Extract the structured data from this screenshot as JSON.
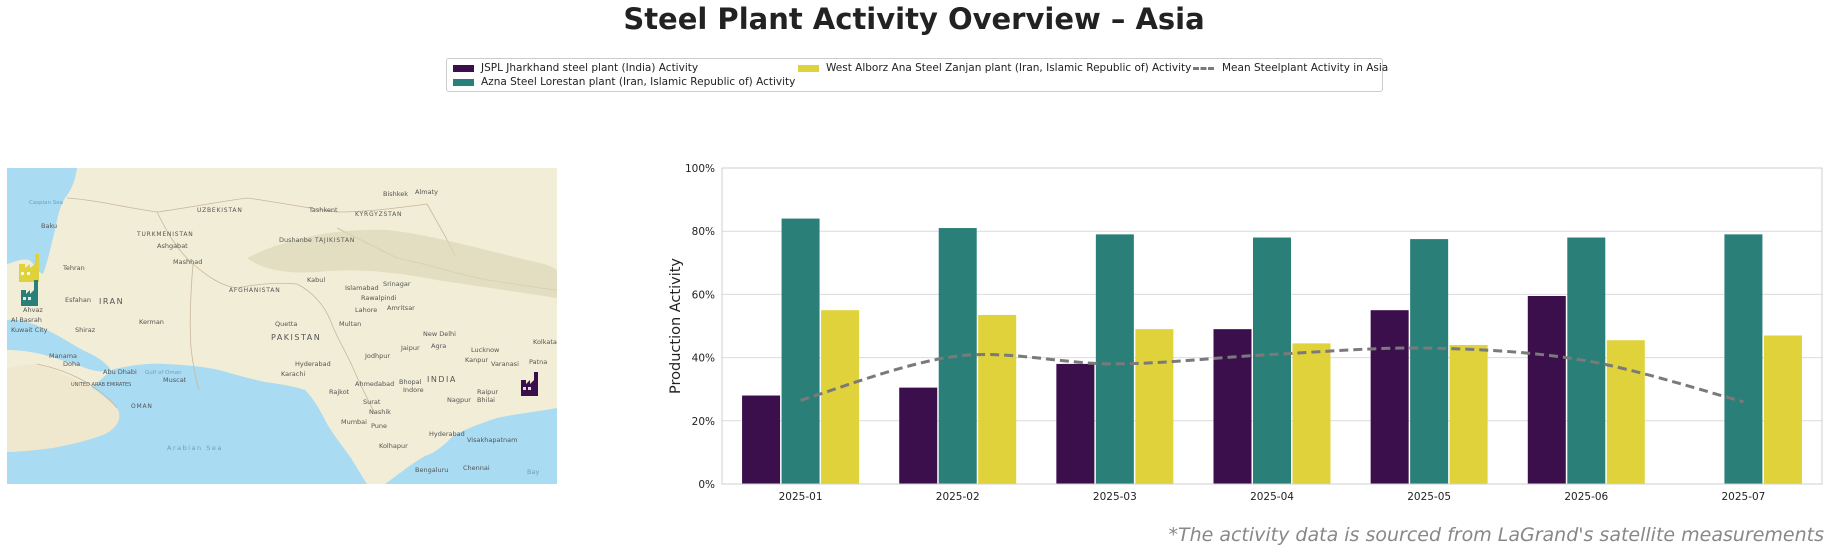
{
  "title": "Steel Plant Activity Overview – Asia",
  "legend": {
    "items": [
      {
        "label": "JSPL Jharkhand steel plant (India) Activity",
        "color": "#3b0f4b"
      },
      {
        "label": "Azna Steel Lorestan plant (Iran, Islamic Republic of) Activity",
        "color": "#2a8078"
      },
      {
        "label": "West Alborz Ana Steel Zanjan plant (Iran, Islamic Republic of) Activity",
        "color": "#e0d23a"
      },
      {
        "label": "Mean Steelplant Activity in Asia",
        "color": "#7a7a7a"
      }
    ]
  },
  "map": {
    "labels": {
      "caspian": "Caspian Sea",
      "uzbekistan": "UZBEKISTAN",
      "turkmenistan": "TURKMENISTAN",
      "kyrgyzstan": "KYRGYZSTAN",
      "tajikistan": "TAJIKISTAN",
      "afghanistan": "AFGHANISTAN",
      "iran": "IRAN",
      "pakistan": "PAKISTAN",
      "india": "INDIA",
      "oman": "OMAN",
      "uae": "UNITED ARAB EMIRATES",
      "gulf_oman": "Gulf of Oman",
      "arabian_sea": "Arabian Sea",
      "bay": "Bay",
      "baku": "Baku",
      "tehran": "Tehran",
      "esfahan": "Esfahan",
      "kerman": "Kerman",
      "shiraz": "Shiraz",
      "ahvaz": "Ahvaz",
      "kuwait": "Kuwait City",
      "manama": "Manama",
      "doha": "Doha",
      "abu_dhabi": "Abu Dhabi",
      "muscat": "Muscat",
      "ashgabat": "Ashgabat",
      "mashhad": "Mashhad",
      "tashkent": "Tashkent",
      "dushanbe": "Dushanbe",
      "bishkek": "Bishkek",
      "almaty": "Almaty",
      "kabul": "Kabul",
      "islamabad": "Islamabad",
      "rawalpindi": "Rawalpindi",
      "srinagar": "Srinagar",
      "lahore": "Lahore",
      "amritsar": "Amritsar",
      "quetta": "Quetta",
      "multan": "Multan",
      "jodhpur": "Jodhpur",
      "jaipur": "Jaipur",
      "new_delhi": "New Delhi",
      "agra": "Agra",
      "lucknow": "Lucknow",
      "kanpur": "Kanpur",
      "varanasi": "Varanasi",
      "patna": "Patna",
      "kolkata": "Kolkata",
      "hyderabad_pk": "Hyderabad",
      "karachi": "Karachi",
      "rajkot": "Rajkot",
      "ahmedabad": "Ahmedabad",
      "bhopal": "Bhopal",
      "indore": "Indore",
      "surat": "Surat",
      "nashik": "Nashik",
      "mumbai": "Mumbai",
      "pune": "Pune",
      "nagpur": "Nagpur",
      "hyderabad_in": "Hyderabad",
      "visakhapatnam": "Visakhapatnam",
      "kolhapur": "Kolhapur",
      "bengaluru": "Bengaluru",
      "chennai": "Chennai",
      "bhilai": "Bhilai",
      "raipur": "Raipur",
      "basra": "Al Basrah"
    }
  },
  "chart_data": {
    "type": "bar",
    "categories": [
      "2025-01",
      "2025-02",
      "2025-03",
      "2025-04",
      "2025-05",
      "2025-06",
      "2025-07"
    ],
    "series": [
      {
        "name": "JSPL Jharkhand steel plant (India) Activity",
        "color": "#3b0f4b",
        "values": [
          28,
          30.5,
          38,
          49,
          55,
          59.5,
          null
        ]
      },
      {
        "name": "Azna Steel Lorestan plant (Iran, Islamic Republic of) Activity",
        "color": "#2a8078",
        "values": [
          84,
          81,
          79,
          78,
          77.5,
          78,
          79
        ]
      },
      {
        "name": "West Alborz Ana Steel Zanjan plant (Iran, Islamic Republic of) Activity",
        "color": "#e0d23a",
        "values": [
          55,
          53.5,
          49,
          44.5,
          44,
          45.5,
          47
        ]
      }
    ],
    "line": {
      "name": "Mean Steelplant Activity in Asia",
      "color": "#7a7a7a",
      "values": [
        26.5,
        40.5,
        38,
        41,
        43,
        39,
        26
      ]
    },
    "ylabel": "Production Activity",
    "xlabel": "",
    "ylim": [
      0,
      100
    ],
    "yticks": [
      0,
      20,
      40,
      60,
      80,
      100
    ],
    "ytick_labels": [
      "0%",
      "20%",
      "40%",
      "60%",
      "80%",
      "100%"
    ],
    "grid": true
  },
  "footnote": "*The activity data is sourced from LaGrand's satellite measurements"
}
